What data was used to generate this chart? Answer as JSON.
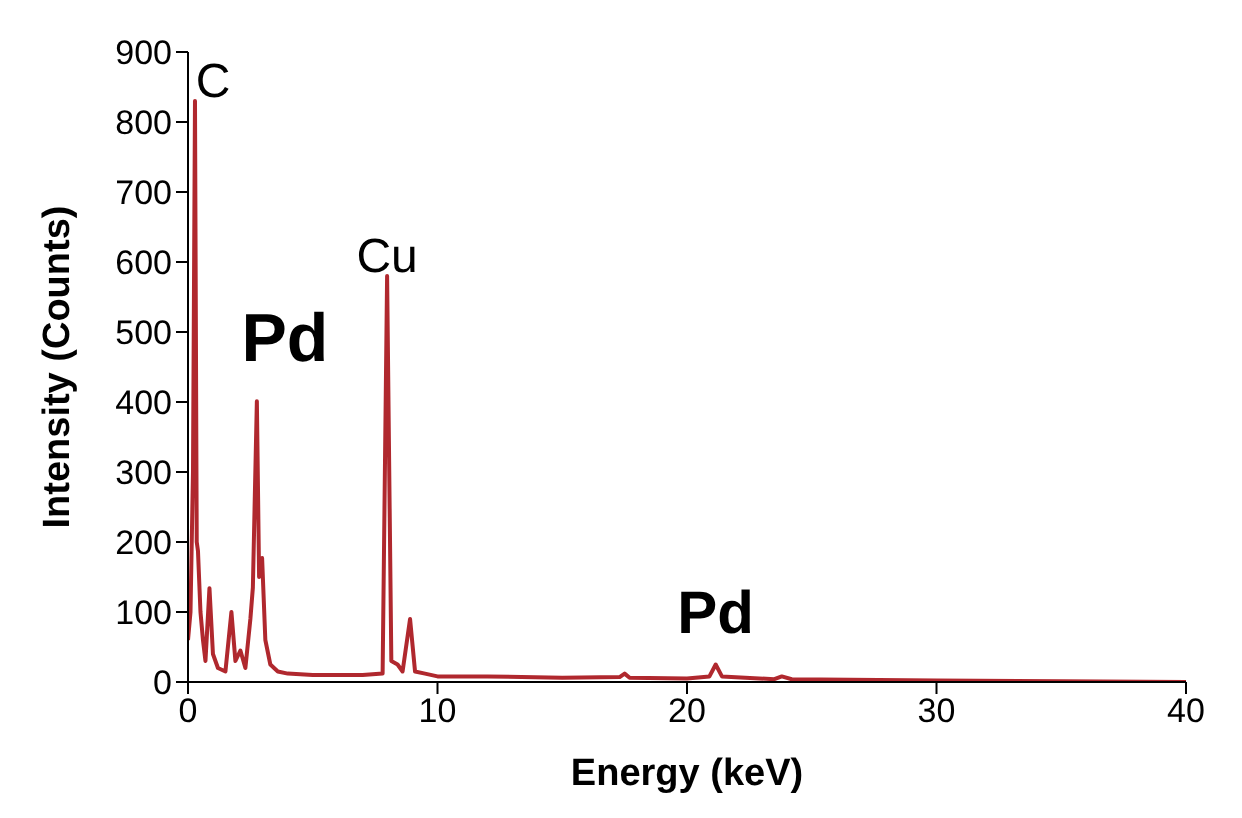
{
  "chart_data": {
    "type": "line",
    "xlabel": "Energy (keV)",
    "ylabel": "Intensity (Counts)",
    "x": [
      0,
      0.1,
      0.2,
      0.28,
      0.35,
      0.4,
      0.5,
      0.6,
      0.7,
      0.86,
      1.0,
      1.2,
      1.5,
      1.74,
      1.9,
      2.1,
      2.3,
      2.5,
      2.6,
      2.76,
      2.85,
      2.97,
      3.1,
      3.3,
      3.6,
      4,
      5,
      6,
      7,
      7.8,
      7.98,
      8.15,
      8.4,
      8.6,
      8.9,
      9.1,
      9.5,
      10,
      12,
      15,
      17.3,
      17.5,
      17.7,
      20,
      20.9,
      21.15,
      21.4,
      23.5,
      23.8,
      24.2,
      30,
      35,
      40
    ],
    "series": [
      {
        "color": "#b0282e",
        "values": [
          60,
          100,
          300,
          830,
          200,
          187,
          100,
          60,
          30,
          134,
          40,
          20,
          15,
          100,
          30,
          45,
          20,
          90,
          135,
          401,
          150,
          177,
          60,
          25,
          15,
          12,
          10,
          10,
          10,
          12,
          580,
          30,
          25,
          15,
          90,
          15,
          12,
          8,
          8,
          6,
          7,
          12,
          6,
          5,
          8,
          25,
          8,
          4,
          8,
          4,
          2,
          1,
          0
        ]
      }
    ],
    "xlim": [
      0,
      40
    ],
    "xticks": [
      0,
      10,
      20,
      30,
      40
    ],
    "ylim": [
      0,
      900
    ],
    "yticks": [
      0,
      100,
      200,
      300,
      400,
      500,
      600,
      700,
      800,
      900
    ],
    "grid": false,
    "legend": false,
    "marker": "none",
    "line_style": "solid",
    "annotations": [
      {
        "text": "C",
        "x": 0.28,
        "y": 830
      },
      {
        "text": "Cu",
        "x": 7.98,
        "y": 580
      },
      {
        "text": "Pd",
        "x": 2.76,
        "y": 401
      },
      {
        "text": "Pd",
        "x": 21.15,
        "y": 25
      }
    ]
  }
}
